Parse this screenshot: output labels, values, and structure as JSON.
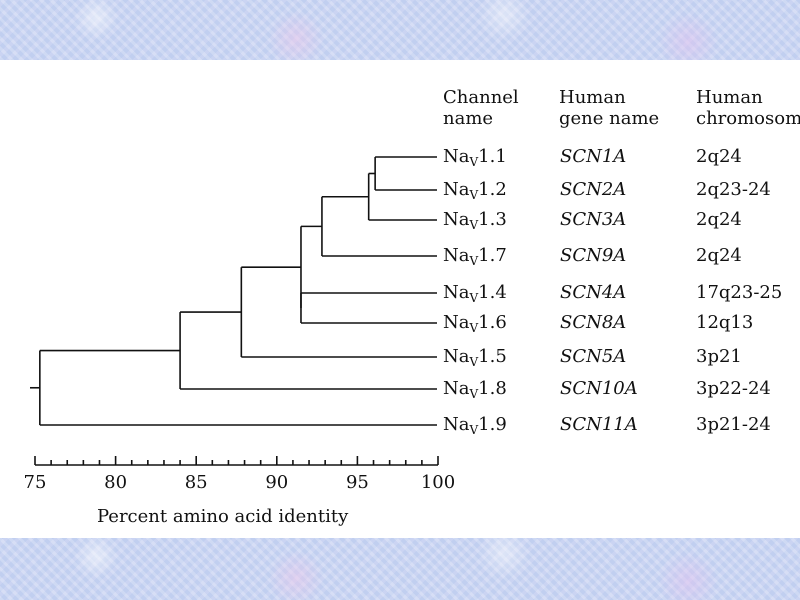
{
  "headers": {
    "channel_line1": "Channel",
    "channel_line2": "name",
    "gene_line1": "Human",
    "gene_line2": "gene name",
    "chrom_line1": "Human",
    "chrom_line2": "chromosome"
  },
  "rows": [
    {
      "prefix": "Na",
      "sub": "V",
      "suffix": "1.1",
      "gene": "SCN1A",
      "chromosome": "2q24"
    },
    {
      "prefix": "Na",
      "sub": "V",
      "suffix": "1.2",
      "gene": "SCN2A",
      "chromosome": "2q23-24"
    },
    {
      "prefix": "Na",
      "sub": "V",
      "suffix": "1.3",
      "gene": "SCN3A",
      "chromosome": "2q24"
    },
    {
      "prefix": "Na",
      "sub": "V",
      "suffix": "1.7",
      "gene": "SCN9A",
      "chromosome": "2q24"
    },
    {
      "prefix": "Na",
      "sub": "V",
      "suffix": "1.4",
      "gene": "SCN4A",
      "chromosome": "17q23-25"
    },
    {
      "prefix": "Na",
      "sub": "V",
      "suffix": "1.6",
      "gene": "SCN8A",
      "chromosome": "12q13"
    },
    {
      "prefix": "Na",
      "sub": "V",
      "suffix": "1.5",
      "gene": "SCN5A",
      "chromosome": "3p21"
    },
    {
      "prefix": "Na",
      "sub": "V",
      "suffix": "1.8",
      "gene": "SCN10A",
      "chromosome": "3p22-24"
    },
    {
      "prefix": "Na",
      "sub": "V",
      "suffix": "1.9",
      "gene": "SCN11A",
      "chromosome": "3p21-24"
    }
  ],
  "axis": {
    "label": "Percent amino acid identity",
    "min": 75,
    "max": 100,
    "ticks": [
      "75",
      "80",
      "85",
      "90",
      "95",
      "100"
    ]
  },
  "tree": {
    "nodes": [
      {
        "id": "n11_12",
        "identity": 96.1,
        "children": [
          0,
          1
        ]
      },
      {
        "id": "n_1_3",
        "identity": 95.7,
        "children": [
          "n11_12",
          2
        ]
      },
      {
        "id": "n_1_7",
        "identity": 92.8,
        "children": [
          "n_1_3",
          3
        ]
      },
      {
        "id": "n14_16",
        "identity": 91.5,
        "children": [
          4,
          5
        ]
      },
      {
        "id": "n_brain_muscle",
        "identity": 91.5,
        "children": [
          "n_1_7",
          "n14_16"
        ]
      },
      {
        "id": "n_1_5",
        "identity": 87.8,
        "children": [
          "n_brain_muscle",
          6
        ]
      },
      {
        "id": "n_1_8",
        "identity": 84.0,
        "children": [
          "n_1_5",
          7
        ]
      },
      {
        "id": "root",
        "identity": 75.3,
        "children": [
          "n_1_8",
          8
        ]
      }
    ]
  }
}
